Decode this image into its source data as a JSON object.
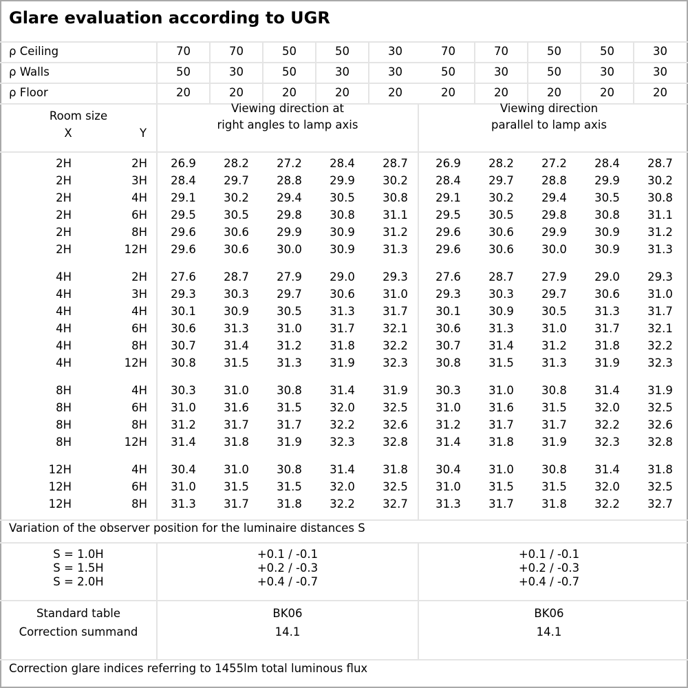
{
  "title": "Glare evaluation according to UGR",
  "reflectances": [
    {
      "label": "ρ Ceiling",
      "values": [
        "70",
        "70",
        "50",
        "50",
        "30",
        "70",
        "70",
        "50",
        "50",
        "30"
      ]
    },
    {
      "label": "ρ Walls",
      "values": [
        "50",
        "30",
        "50",
        "30",
        "30",
        "50",
        "30",
        "50",
        "30",
        "30"
      ]
    },
    {
      "label": "ρ Floor",
      "values": [
        "20",
        "20",
        "20",
        "20",
        "20",
        "20",
        "20",
        "20",
        "20",
        "20"
      ]
    }
  ],
  "header": {
    "room_size": "Room size",
    "x": "X",
    "y": "Y",
    "dir_right_line1": "Viewing direction at",
    "dir_right_line2": "right angles to lamp axis",
    "dir_parallel_line1": "Viewing direction",
    "dir_parallel_line2": "parallel to lamp axis"
  },
  "groups": [
    [
      {
        "x": "2H",
        "y": "2H",
        "v": [
          "26.9",
          "28.2",
          "27.2",
          "28.4",
          "28.7",
          "26.9",
          "28.2",
          "27.2",
          "28.4",
          "28.7"
        ]
      },
      {
        "x": "2H",
        "y": "3H",
        "v": [
          "28.4",
          "29.7",
          "28.8",
          "29.9",
          "30.2",
          "28.4",
          "29.7",
          "28.8",
          "29.9",
          "30.2"
        ]
      },
      {
        "x": "2H",
        "y": "4H",
        "v": [
          "29.1",
          "30.2",
          "29.4",
          "30.5",
          "30.8",
          "29.1",
          "30.2",
          "29.4",
          "30.5",
          "30.8"
        ]
      },
      {
        "x": "2H",
        "y": "6H",
        "v": [
          "29.5",
          "30.5",
          "29.8",
          "30.8",
          "31.1",
          "29.5",
          "30.5",
          "29.8",
          "30.8",
          "31.1"
        ]
      },
      {
        "x": "2H",
        "y": "8H",
        "v": [
          "29.6",
          "30.6",
          "29.9",
          "30.9",
          "31.2",
          "29.6",
          "30.6",
          "29.9",
          "30.9",
          "31.2"
        ]
      },
      {
        "x": "2H",
        "y": "12H",
        "v": [
          "29.6",
          "30.6",
          "30.0",
          "30.9",
          "31.3",
          "29.6",
          "30.6",
          "30.0",
          "30.9",
          "31.3"
        ]
      }
    ],
    [
      {
        "x": "4H",
        "y": "2H",
        "v": [
          "27.6",
          "28.7",
          "27.9",
          "29.0",
          "29.3",
          "27.6",
          "28.7",
          "27.9",
          "29.0",
          "29.3"
        ]
      },
      {
        "x": "4H",
        "y": "3H",
        "v": [
          "29.3",
          "30.3",
          "29.7",
          "30.6",
          "31.0",
          "29.3",
          "30.3",
          "29.7",
          "30.6",
          "31.0"
        ]
      },
      {
        "x": "4H",
        "y": "4H",
        "v": [
          "30.1",
          "30.9",
          "30.5",
          "31.3",
          "31.7",
          "30.1",
          "30.9",
          "30.5",
          "31.3",
          "31.7"
        ]
      },
      {
        "x": "4H",
        "y": "6H",
        "v": [
          "30.6",
          "31.3",
          "31.0",
          "31.7",
          "32.1",
          "30.6",
          "31.3",
          "31.0",
          "31.7",
          "32.1"
        ]
      },
      {
        "x": "4H",
        "y": "8H",
        "v": [
          "30.7",
          "31.4",
          "31.2",
          "31.8",
          "32.2",
          "30.7",
          "31.4",
          "31.2",
          "31.8",
          "32.2"
        ]
      },
      {
        "x": "4H",
        "y": "12H",
        "v": [
          "30.8",
          "31.5",
          "31.3",
          "31.9",
          "32.3",
          "30.8",
          "31.5",
          "31.3",
          "31.9",
          "32.3"
        ]
      }
    ],
    [
      {
        "x": "8H",
        "y": "4H",
        "v": [
          "30.3",
          "31.0",
          "30.8",
          "31.4",
          "31.9",
          "30.3",
          "31.0",
          "30.8",
          "31.4",
          "31.9"
        ]
      },
      {
        "x": "8H",
        "y": "6H",
        "v": [
          "31.0",
          "31.6",
          "31.5",
          "32.0",
          "32.5",
          "31.0",
          "31.6",
          "31.5",
          "32.0",
          "32.5"
        ]
      },
      {
        "x": "8H",
        "y": "8H",
        "v": [
          "31.2",
          "31.7",
          "31.7",
          "32.2",
          "32.6",
          "31.2",
          "31.7",
          "31.7",
          "32.2",
          "32.6"
        ]
      },
      {
        "x": "8H",
        "y": "12H",
        "v": [
          "31.4",
          "31.8",
          "31.9",
          "32.3",
          "32.8",
          "31.4",
          "31.8",
          "31.9",
          "32.3",
          "32.8"
        ]
      }
    ],
    [
      {
        "x": "12H",
        "y": "4H",
        "v": [
          "30.4",
          "31.0",
          "30.8",
          "31.4",
          "31.8",
          "30.4",
          "31.0",
          "30.8",
          "31.4",
          "31.8"
        ]
      },
      {
        "x": "12H",
        "y": "6H",
        "v": [
          "31.0",
          "31.5",
          "31.5",
          "32.0",
          "32.5",
          "31.0",
          "31.5",
          "31.5",
          "32.0",
          "32.5"
        ]
      },
      {
        "x": "12H",
        "y": "8H",
        "v": [
          "31.3",
          "31.7",
          "31.8",
          "32.2",
          "32.7",
          "31.3",
          "31.7",
          "31.8",
          "32.2",
          "32.7"
        ]
      }
    ]
  ],
  "variation_label": "Variation of the observer position for the luminaire distances S",
  "variation": [
    {
      "s": "S = 1.0H",
      "right": "+0.1 / -0.1",
      "parallel": "+0.1 / -0.1"
    },
    {
      "s": "S = 1.5H",
      "right": "+0.2 / -0.3",
      "parallel": "+0.2 / -0.3"
    },
    {
      "s": "S = 2.0H",
      "right": "+0.4 / -0.7",
      "parallel": "+0.4 / -0.7"
    }
  ],
  "standard_table": {
    "label": "Standard table",
    "right": "BK06",
    "parallel": "BK06"
  },
  "correction": {
    "label": "Correction summand",
    "right": "14.1",
    "parallel": "14.1"
  },
  "footer": "Correction glare indices referring to 1455lm total luminous flux"
}
